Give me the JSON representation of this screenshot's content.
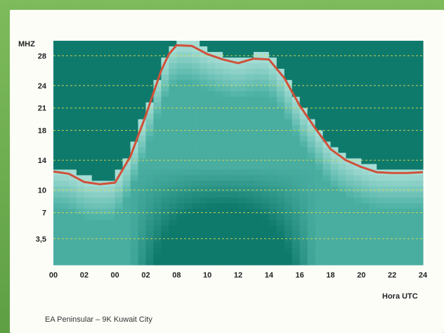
{
  "chart_data": {
    "type": "heatmap",
    "ylabel": "MHZ",
    "xlabel": "Hora UTC",
    "caption": "EA Peninsular – 9K Kuwait City",
    "x_ticks": [
      "00",
      "02",
      "00",
      "02",
      "08",
      "10",
      "12",
      "14",
      "16",
      "18",
      "20",
      "22",
      "24"
    ],
    "y_ticks": [
      "28",
      "24",
      "21",
      "18",
      "14",
      "10",
      "7",
      "3,5"
    ],
    "y_tick_values": [
      28,
      24,
      21,
      18,
      14,
      10,
      7,
      3.5
    ],
    "ylim": [
      0,
      30
    ],
    "xlim": [
      0,
      24
    ],
    "grid": true,
    "colors": {
      "dark": "#0e7a6c",
      "mid": "#4fb3a6",
      "light": "#a6ddd5",
      "curve": "#d0513a",
      "grid": "#e8e04a"
    },
    "series": [
      {
        "x": [
          0,
          1,
          2,
          3,
          4,
          5,
          6,
          7,
          7.5,
          8,
          9,
          10,
          11,
          12,
          13,
          14,
          15,
          16,
          17,
          18,
          19,
          20,
          21,
          22,
          23,
          24
        ],
        "values": [
          12.5,
          12.2,
          11.1,
          10.8,
          11.0,
          14.5,
          20.0,
          26.0,
          28.2,
          29.4,
          29.3,
          28.2,
          27.5,
          27.0,
          27.6,
          27.5,
          25.0,
          21.3,
          18.3,
          15.5,
          14.0,
          13.1,
          12.4,
          12.3,
          12.3,
          12.4
        ]
      }
    ]
  }
}
